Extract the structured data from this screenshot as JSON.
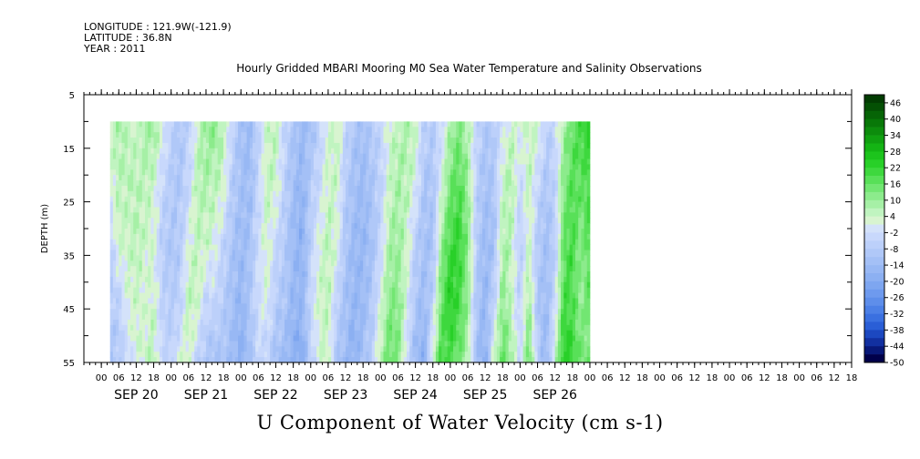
{
  "header": {
    "longitude": "LONGITUDE : 121.9W(-121.9)",
    "latitude": "LATITUDE : 36.8N",
    "year": "YEAR : 2011",
    "title": "Hourly Gridded MBARI Mooring M0 Sea Water Temperature and Salinity Observations"
  },
  "footer": {
    "variable_title": "U Component of Water Velocity (cm s-1)"
  },
  "chart_data": {
    "type": "heatmap",
    "title": "Hourly Gridded MBARI Mooring M0 Sea Water Temperature and Salinity Observations",
    "variable": "U Component of Water Velocity (cm s-1)",
    "xlabel": "",
    "ylabel": "DEPTH (m)",
    "y_inverted": true,
    "ylim": [
      5,
      55
    ],
    "y_ticks": [
      5,
      15,
      25,
      35,
      45,
      55
    ],
    "x_hour_ticks": [
      "00",
      "06",
      "12",
      "18",
      "00",
      "06",
      "12",
      "18",
      "00",
      "06",
      "12",
      "18",
      "00",
      "06",
      "12",
      "18",
      "00",
      "06",
      "12",
      "18",
      "00",
      "06",
      "12",
      "18",
      "00",
      "06",
      "12",
      "18",
      "00",
      "06",
      "12",
      "18",
      "00",
      "06",
      "12",
      "18",
      "00",
      "06",
      "12",
      "18",
      "00",
      "06",
      "12",
      "18"
    ],
    "date_labels": [
      "SEP 20",
      "SEP 21",
      "SEP 22",
      "SEP 23",
      "SEP 24",
      "SEP 25",
      "SEP 26"
    ],
    "data_range_x": [
      "SEP 20 03",
      "SEP 27 00"
    ],
    "data_range_depth": [
      10,
      55
    ],
    "colorbar": {
      "labels": [
        "46",
        "40",
        "34",
        "28",
        "22",
        "16",
        "10",
        "4",
        "-2",
        "-8",
        "-14",
        "-20",
        "-26",
        "-32",
        "-38",
        "-44",
        "-50"
      ],
      "levels": [
        -50,
        -47,
        -44,
        -41,
        -38,
        -35,
        -32,
        -29,
        -26,
        -23,
        -20,
        -17,
        -14,
        -11,
        -8,
        -5,
        -2,
        1,
        4,
        7,
        10,
        13,
        16,
        19,
        22,
        25,
        28,
        31,
        34,
        37,
        40,
        43,
        46,
        49
      ],
      "colors": [
        "#00004a",
        "#081878",
        "#1230a0",
        "#1c48c0",
        "#2a5ed6",
        "#3a70e0",
        "#4c80e6",
        "#5e8eea",
        "#6e9aee",
        "#7ea6f0",
        "#8cb0f2",
        "#98b8f4",
        "#a4c0f6",
        "#b0c8f8",
        "#bcd0fa",
        "#c8d8fc",
        "#d4e2fa",
        "#d8f4d0",
        "#c0f4c0",
        "#a6f0a6",
        "#8ceb8c",
        "#72e672",
        "#58e058",
        "#3ed83e",
        "#28d028",
        "#1cc41c",
        "#14b414",
        "#10a010",
        "#0c8c0c",
        "#087808",
        "#066406",
        "#045004",
        "#023c02"
      ]
    },
    "columns_by_hour": [
      {
        "h": 3,
        "v": [
          4,
          2,
          -6,
          -8,
          -10
        ]
      },
      {
        "h": 6,
        "v": [
          8,
          6,
          4,
          -6,
          -8
        ]
      },
      {
        "h": 9,
        "v": [
          6,
          6,
          4,
          2,
          -4
        ]
      },
      {
        "h": 12,
        "v": [
          4,
          6,
          6,
          4,
          2
        ]
      },
      {
        "h": 15,
        "v": [
          8,
          6,
          4,
          2,
          4
        ]
      },
      {
        "h": 18,
        "v": [
          10,
          4,
          2,
          4,
          6
        ]
      },
      {
        "h": 21,
        "v": [
          2,
          -4,
          -8,
          -6,
          -4
        ]
      },
      {
        "h": 24,
        "v": [
          -6,
          -8,
          -10,
          -8,
          -6
        ]
      },
      {
        "h": 27,
        "v": [
          -10,
          -10,
          -8,
          -6,
          2
        ]
      },
      {
        "h": 30,
        "v": [
          -6,
          -4,
          2,
          6,
          4
        ]
      },
      {
        "h": 33,
        "v": [
          4,
          6,
          6,
          4,
          -6
        ]
      },
      {
        "h": 36,
        "v": [
          10,
          8,
          4,
          -4,
          -10
        ]
      },
      {
        "h": 39,
        "v": [
          12,
          6,
          2,
          -4,
          -12
        ]
      },
      {
        "h": 42,
        "v": [
          6,
          4,
          -4,
          -8,
          -10
        ]
      },
      {
        "h": 45,
        "v": [
          -4,
          -8,
          -10,
          -12,
          -14
        ]
      },
      {
        "h": 48,
        "v": [
          -12,
          -12,
          -14,
          -16,
          -18
        ]
      },
      {
        "h": 51,
        "v": [
          -14,
          -14,
          -12,
          -10,
          -12
        ]
      },
      {
        "h": 54,
        "v": [
          -6,
          -4,
          -2,
          -2,
          -4
        ]
      },
      {
        "h": 57,
        "v": [
          4,
          6,
          4,
          2,
          -6
        ]
      },
      {
        "h": 60,
        "v": [
          6,
          4,
          -4,
          -8,
          -12
        ]
      },
      {
        "h": 63,
        "v": [
          -4,
          -6,
          -8,
          -10,
          -14
        ]
      },
      {
        "h": 66,
        "v": [
          -10,
          -12,
          -14,
          -16,
          -18
        ]
      },
      {
        "h": 69,
        "v": [
          -14,
          -16,
          -18,
          -16,
          -20
        ]
      },
      {
        "h": 72,
        "v": [
          -12,
          -8,
          -6,
          -4,
          -6
        ]
      },
      {
        "h": 75,
        "v": [
          -6,
          -4,
          2,
          4,
          2
        ]
      },
      {
        "h": 78,
        "v": [
          2,
          4,
          6,
          6,
          4
        ]
      },
      {
        "h": 81,
        "v": [
          6,
          4,
          2,
          -6,
          -10
        ]
      },
      {
        "h": 84,
        "v": [
          -4,
          -8,
          -10,
          -12,
          -14
        ]
      },
      {
        "h": 87,
        "v": [
          -10,
          -12,
          -14,
          -16,
          -18
        ]
      },
      {
        "h": 90,
        "v": [
          -12,
          -14,
          -16,
          -14,
          -12
        ]
      },
      {
        "h": 93,
        "v": [
          -8,
          -10,
          -12,
          -10,
          -6
        ]
      },
      {
        "h": 96,
        "v": [
          -4,
          -6,
          -4,
          2,
          6
        ]
      },
      {
        "h": 99,
        "v": [
          2,
          4,
          8,
          12,
          16
        ]
      },
      {
        "h": 102,
        "v": [
          6,
          8,
          10,
          12,
          14
        ]
      },
      {
        "h": 105,
        "v": [
          8,
          6,
          4,
          2,
          -4
        ]
      },
      {
        "h": 108,
        "v": [
          4,
          2,
          -6,
          -10,
          -14
        ]
      },
      {
        "h": 111,
        "v": [
          -6,
          -10,
          -12,
          -14,
          -18
        ]
      },
      {
        "h": 114,
        "v": [
          -8,
          -10,
          -12,
          -6,
          4
        ]
      },
      {
        "h": 117,
        "v": [
          -4,
          2,
          10,
          16,
          20
        ]
      },
      {
        "h": 120,
        "v": [
          8,
          14,
          20,
          24,
          18
        ]
      },
      {
        "h": 123,
        "v": [
          12,
          18,
          22,
          20,
          14
        ]
      },
      {
        "h": 126,
        "v": [
          6,
          10,
          12,
          10,
          6
        ]
      },
      {
        "h": 129,
        "v": [
          -4,
          -6,
          -8,
          -10,
          -12
        ]
      },
      {
        "h": 132,
        "v": [
          -10,
          -12,
          -14,
          -16,
          -18
        ]
      },
      {
        "h": 135,
        "v": [
          -8,
          -10,
          -12,
          -6,
          4
        ]
      },
      {
        "h": 138,
        "v": [
          -2,
          4,
          8,
          12,
          16
        ]
      },
      {
        "h": 141,
        "v": [
          4,
          8,
          6,
          4,
          10
        ]
      },
      {
        "h": 144,
        "v": [
          2,
          -4,
          -8,
          -6,
          -4
        ]
      },
      {
        "h": 147,
        "v": [
          4,
          6,
          4,
          10,
          16
        ]
      },
      {
        "h": 150,
        "v": [
          6,
          -4,
          -8,
          -10,
          -6
        ]
      },
      {
        "h": 153,
        "v": [
          -6,
          -10,
          -12,
          -14,
          -16
        ]
      },
      {
        "h": 156,
        "v": [
          -4,
          -6,
          -8,
          -4,
          4
        ]
      },
      {
        "h": 159,
        "v": [
          8,
          12,
          16,
          20,
          24
        ]
      },
      {
        "h": 162,
        "v": [
          16,
          18,
          20,
          18,
          22
        ]
      },
      {
        "h": 165,
        "v": [
          20,
          16,
          12,
          10,
          14
        ]
      },
      {
        "h": 168,
        "v": [
          22,
          20,
          18,
          16,
          12
        ]
      }
    ]
  }
}
